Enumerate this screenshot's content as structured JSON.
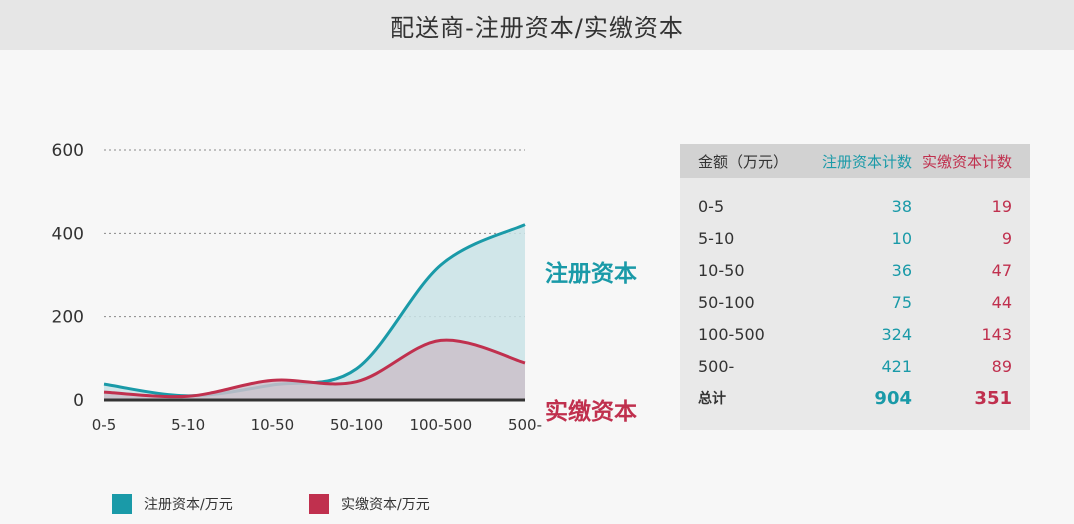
{
  "colors": {
    "registered": "#1a9aa8",
    "registered_fill": "#c9e3e6",
    "paid": "#c0304e",
    "paid_fill": "#cbc0ca"
  },
  "chart_data": {
    "type": "area",
    "title": "配送商-注册资本/实缴资本",
    "categories": [
      "0-5",
      "5-10",
      "10-50",
      "50-100",
      "100-500",
      "500-"
    ],
    "y_ticks": [
      0,
      200,
      400,
      600
    ],
    "ylim": [
      0,
      600
    ],
    "grid": "dashed horizontal",
    "series": [
      {
        "name": "注册资本",
        "values": [
          38,
          10,
          36,
          75,
          324,
          421
        ]
      },
      {
        "name": "实缴资本",
        "values": [
          19,
          9,
          47,
          44,
          143,
          89
        ]
      }
    ],
    "legend": {
      "position": "bottom",
      "entries": [
        "注册资本/万元",
        "实缴资本/万元"
      ]
    }
  },
  "table": {
    "headers": [
      "金额（万元）",
      "注册资本计数",
      "实缴资本计数"
    ],
    "rows": [
      [
        "0-5",
        "38",
        "19"
      ],
      [
        "5-10",
        "10",
        "9"
      ],
      [
        "10-50",
        "36",
        "47"
      ],
      [
        "50-100",
        "75",
        "44"
      ],
      [
        "100-500",
        "324",
        "143"
      ],
      [
        "500-",
        "421",
        "89"
      ]
    ],
    "total": [
      "总计",
      "904",
      "351"
    ]
  }
}
